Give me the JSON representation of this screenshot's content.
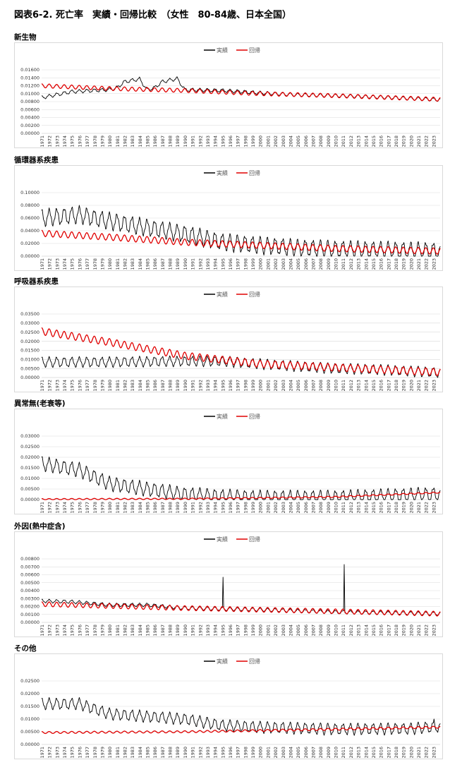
{
  "page_title": "図表6-2. 死亡率　実績・回帰比較　（女性　80-84歳、日本全国）",
  "legend": {
    "actual": "実績",
    "regression": "回帰"
  },
  "colors": {
    "actual": "#000000",
    "regression": "#e00000",
    "grid": "#d9d9d9",
    "axis": "#bfbfbf"
  },
  "x_tick_labels": [
    "1971",
    "1972",
    "1973",
    "1974",
    "1975",
    "1976",
    "1977",
    "1978",
    "1979",
    "1980",
    "1981",
    "1982",
    "1983",
    "1984",
    "1985",
    "1986",
    "1987",
    "1988",
    "1989",
    "1990",
    "1991",
    "1992",
    "1993",
    "1994",
    "1995",
    "1996",
    "1997",
    "1998",
    "1999",
    "2000",
    "2001",
    "2002",
    "2003",
    "2004",
    "2005",
    "2006",
    "2007",
    "2008",
    "2009",
    "2010",
    "2011",
    "2012",
    "2013",
    "2014",
    "2015",
    "2016",
    "2017",
    "2018",
    "2019",
    "2020",
    "2021",
    "2022",
    "2023"
  ],
  "chart_data": [
    {
      "type": "line",
      "title": "新生物",
      "ylim": [
        0,
        0.016
      ],
      "y_ticks": [
        "0.00000",
        "0.00200",
        "0.00400",
        "0.00600",
        "0.00800",
        "0.01000",
        "0.01200",
        "0.01400",
        "0.01600"
      ],
      "series": [
        {
          "name": "実績",
          "keypoints": [
            [
              1971,
              0.009
            ],
            [
              1975,
              0.0105
            ],
            [
              1980,
              0.011
            ],
            [
              1981,
              0.0115
            ],
            [
              1982,
              0.013
            ],
            [
              1984,
              0.0137
            ],
            [
              1985,
              0.011
            ],
            [
              1986,
              0.0115
            ],
            [
              1987,
              0.013
            ],
            [
              1989,
              0.0138
            ],
            [
              1990,
              0.011
            ],
            [
              1995,
              0.0108
            ],
            [
              2000,
              0.0102
            ],
            [
              2005,
              0.0097
            ],
            [
              2010,
              0.0095
            ],
            [
              2015,
              0.0092
            ],
            [
              2020,
              0.0088
            ],
            [
              2023.5,
              0.0085
            ]
          ],
          "seasonal_amp": 0.0004
        },
        {
          "name": "回帰",
          "keypoints": [
            [
              1971,
              0.012
            ],
            [
              1980,
              0.0113
            ],
            [
              1990,
              0.0108
            ],
            [
              2000,
              0.01
            ],
            [
              2010,
              0.0095
            ],
            [
              2023.5,
              0.0086
            ]
          ],
          "seasonal_amp": 0.0005
        }
      ]
    },
    {
      "type": "line",
      "title": "循環器系疾患",
      "ylim": [
        0,
        0.1
      ],
      "y_ticks": [
        "0.00000",
        "0.02000",
        "0.04000",
        "0.06000",
        "0.08000",
        "0.10000"
      ],
      "series": [
        {
          "name": "実績",
          "keypoints": [
            [
              1971,
              0.06
            ],
            [
              1976,
              0.065
            ],
            [
              1980,
              0.055
            ],
            [
              1985,
              0.045
            ],
            [
              1990,
              0.035
            ],
            [
              1995,
              0.022
            ],
            [
              2000,
              0.017
            ],
            [
              2005,
              0.013
            ],
            [
              2010,
              0.011
            ],
            [
              2015,
              0.01
            ],
            [
              2023.5,
              0.008
            ]
          ],
          "seasonal_amp": 0.012
        },
        {
          "name": "回帰",
          "keypoints": [
            [
              1971,
              0.036
            ],
            [
              1980,
              0.03
            ],
            [
              1990,
              0.022
            ],
            [
              2000,
              0.017
            ],
            [
              2010,
              0.012
            ],
            [
              2023.5,
              0.008
            ]
          ],
          "seasonal_amp": 0.005
        }
      ]
    },
    {
      "type": "line",
      "title": "呼吸器系疾患",
      "ylim": [
        0,
        0.035
      ],
      "y_ticks": [
        "0.00000",
        "0.00500",
        "0.01000",
        "0.01500",
        "0.02000",
        "0.02500",
        "0.03000",
        "0.03500"
      ],
      "series": [
        {
          "name": "実績",
          "keypoints": [
            [
              1971,
              0.0085
            ],
            [
              1980,
              0.0085
            ],
            [
              1990,
              0.009
            ],
            [
              1995,
              0.009
            ],
            [
              2000,
              0.0075
            ],
            [
              2005,
              0.0062
            ],
            [
              2010,
              0.005
            ],
            [
              2015,
              0.0045
            ],
            [
              2020,
              0.0035
            ],
            [
              2023.5,
              0.0028
            ]
          ],
          "seasonal_amp": 0.0025
        },
        {
          "name": "回帰",
          "keypoints": [
            [
              1971,
              0.0255
            ],
            [
              1980,
              0.0195
            ],
            [
              1990,
              0.012
            ],
            [
              2000,
              0.0075
            ],
            [
              2010,
              0.0055
            ],
            [
              2023.5,
              0.003
            ]
          ],
          "seasonal_amp": 0.002
        }
      ]
    },
    {
      "type": "line",
      "title": "異常無(老衰等)",
      "ylim": [
        0,
        0.03
      ],
      "y_ticks": [
        "0.00000",
        "0.00500",
        "0.01000",
        "0.01500",
        "0.02000",
        "0.02500",
        "0.03000"
      ],
      "series": [
        {
          "name": "実績",
          "keypoints": [
            [
              1971,
              0.017
            ],
            [
              1976,
              0.014
            ],
            [
              1980,
              0.0075
            ],
            [
              1985,
              0.005
            ],
            [
              1990,
              0.0025
            ],
            [
              1995,
              0.0015
            ],
            [
              2000,
              0.001
            ],
            [
              2010,
              0.001
            ],
            [
              2023.5,
              0.0025
            ]
          ],
          "seasonal_amp": 0.003
        },
        {
          "name": "回帰",
          "keypoints": [
            [
              1971,
              0.0002
            ],
            [
              1990,
              0.0004
            ],
            [
              2000,
              0.0008
            ],
            [
              2010,
              0.0013
            ],
            [
              2023.5,
              0.0033
            ]
          ],
          "seasonal_amp": 0.0003
        }
      ]
    },
    {
      "type": "line",
      "title": "外因(熱中症含)",
      "ylim": [
        0,
        0.008
      ],
      "y_ticks": [
        "0.00000",
        "0.00100",
        "0.00200",
        "0.00300",
        "0.00400",
        "0.00500",
        "0.00600",
        "0.00700",
        "0.00800"
      ],
      "series": [
        {
          "name": "実績",
          "keypoints": [
            [
              1971,
              0.0027
            ],
            [
              1975,
              0.0026
            ],
            [
              1980,
              0.0022
            ],
            [
              1985,
              0.0022
            ],
            [
              1990,
              0.0018
            ],
            [
              2000,
              0.0016
            ],
            [
              2010,
              0.0013
            ],
            [
              2023.5,
              0.0011
            ]
          ],
          "seasonal_amp": 0.0002,
          "spikes": [
            [
              1995.05,
              0.0057
            ],
            [
              2011.2,
              0.0073
            ]
          ]
        },
        {
          "name": "回帰",
          "keypoints": [
            [
              1971,
              0.0023
            ],
            [
              1990,
              0.0018
            ],
            [
              2000,
              0.0016
            ],
            [
              2010,
              0.0014
            ],
            [
              2023.5,
              0.0011
            ]
          ],
          "seasonal_amp": 0.0003
        }
      ]
    },
    {
      "type": "line",
      "title": "その他",
      "ylim": [
        0,
        0.025
      ],
      "y_ticks": [
        "0.00000",
        "0.00500",
        "0.01000",
        "0.01500",
        "0.02000",
        "0.02500"
      ],
      "series": [
        {
          "name": "実績",
          "keypoints": [
            [
              1971,
              0.016
            ],
            [
              1976,
              0.016
            ],
            [
              1980,
              0.012
            ],
            [
              1985,
              0.011
            ],
            [
              1990,
              0.01
            ],
            [
              1995,
              0.0075
            ],
            [
              2000,
              0.0068
            ],
            [
              2010,
              0.006
            ],
            [
              2020,
              0.0062
            ],
            [
              2023.5,
              0.007
            ]
          ],
          "seasonal_amp": 0.002,
          "spikes": [
            [
              2023.1,
              0.01
            ]
          ]
        },
        {
          "name": "回帰",
          "keypoints": [
            [
              1971,
              0.0047
            ],
            [
              1990,
              0.005
            ],
            [
              2000,
              0.0055
            ],
            [
              2010,
              0.006
            ],
            [
              2023.5,
              0.0068
            ]
          ],
          "seasonal_amp": 0.0004
        }
      ]
    }
  ]
}
